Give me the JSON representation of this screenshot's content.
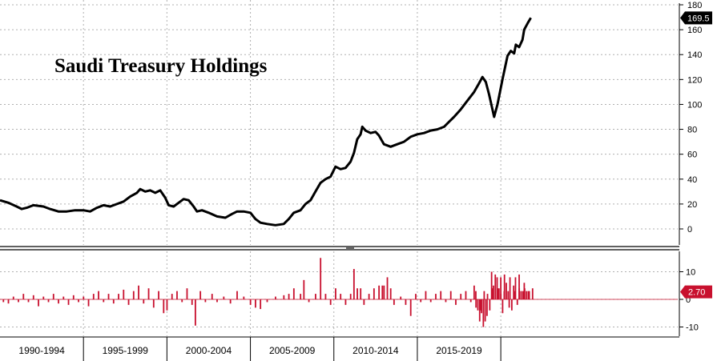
{
  "chart_data": [
    {
      "type": "line",
      "title": "Saudi Treasury Holdings",
      "ylim": [
        0,
        180
      ],
      "yticks": [
        "0",
        "20",
        "40",
        "60",
        "80",
        "100",
        "120",
        "140",
        "160",
        "180"
      ],
      "last_value_label": "169.5",
      "series": [
        {
          "values": [
            [
              1990.0,
              23
            ],
            [
              1990.5,
              21
            ],
            [
              1991.0,
              18
            ],
            [
              1991.3,
              16
            ],
            [
              1991.6,
              17
            ],
            [
              1992.0,
              19
            ],
            [
              1992.6,
              18
            ],
            [
              1993.0,
              16
            ],
            [
              1993.5,
              14
            ],
            [
              1994.0,
              14
            ],
            [
              1994.5,
              15
            ],
            [
              1995.0,
              15
            ],
            [
              1995.4,
              14
            ],
            [
              1995.8,
              17
            ],
            [
              1996.2,
              19
            ],
            [
              1996.6,
              18
            ],
            [
              1997.0,
              20
            ],
            [
              1997.4,
              22
            ],
            [
              1997.8,
              26
            ],
            [
              1998.2,
              29
            ],
            [
              1998.4,
              32
            ],
            [
              1998.7,
              30
            ],
            [
              1999.0,
              31
            ],
            [
              1999.3,
              29
            ],
            [
              1999.6,
              31
            ],
            [
              1999.9,
              25
            ],
            [
              2000.1,
              19
            ],
            [
              2000.4,
              18
            ],
            [
              2000.7,
              21
            ],
            [
              2001.0,
              24
            ],
            [
              2001.3,
              23
            ],
            [
              2001.6,
              18
            ],
            [
              2001.8,
              14
            ],
            [
              2002.1,
              15
            ],
            [
              2002.5,
              13
            ],
            [
              2003.0,
              10
            ],
            [
              2003.5,
              9
            ],
            [
              2003.9,
              12
            ],
            [
              2004.2,
              14
            ],
            [
              2004.6,
              14
            ],
            [
              2005.0,
              13
            ],
            [
              2005.3,
              8
            ],
            [
              2005.6,
              5
            ],
            [
              2006.0,
              4
            ],
            [
              2006.5,
              3
            ],
            [
              2007.0,
              4
            ],
            [
              2007.3,
              8
            ],
            [
              2007.6,
              13
            ],
            [
              2008.0,
              15
            ],
            [
              2008.3,
              20
            ],
            [
              2008.6,
              23
            ],
            [
              2008.9,
              30
            ],
            [
              2009.2,
              37
            ],
            [
              2009.5,
              40
            ],
            [
              2009.8,
              42
            ],
            [
              2010.1,
              50
            ],
            [
              2010.4,
              48
            ],
            [
              2010.7,
              49
            ],
            [
              2011.0,
              54
            ],
            [
              2011.2,
              61
            ],
            [
              2011.4,
              72
            ],
            [
              2011.6,
              76
            ],
            [
              2011.7,
              82
            ],
            [
              2011.9,
              79
            ],
            [
              2012.2,
              77
            ],
            [
              2012.5,
              78
            ],
            [
              2012.7,
              75
            ],
            [
              2013.0,
              68
            ],
            [
              2013.4,
              66
            ],
            [
              2013.8,
              68
            ],
            [
              2014.2,
              70
            ],
            [
              2014.6,
              74
            ],
            [
              2015.0,
              76
            ],
            [
              2015.4,
              77
            ],
            [
              2015.8,
              79
            ],
            [
              2016.2,
              80
            ],
            [
              2016.6,
              82
            ],
            [
              2016.9,
              86
            ],
            [
              2017.2,
              90
            ],
            [
              2017.6,
              96
            ],
            [
              2018.0,
              103
            ],
            [
              2018.4,
              110
            ],
            [
              2018.7,
              117
            ],
            [
              2018.9,
              122
            ],
            [
              2019.1,
              118
            ],
            [
              2019.3,
              108
            ],
            [
              2019.5,
              96
            ],
            [
              2019.6,
              90
            ],
            [
              2019.8,
              100
            ],
            [
              2020.1,
              120
            ],
            [
              2020.4,
              139
            ],
            [
              2020.6,
              143
            ],
            [
              2020.8,
              141
            ],
            [
              2020.9,
              148
            ],
            [
              2021.1,
              146
            ],
            [
              2021.3,
              152
            ],
            [
              2021.4,
              160
            ],
            [
              2021.6,
              165
            ],
            [
              2021.8,
              169.5
            ]
          ]
        }
      ]
    },
    {
      "type": "bar",
      "ylim": [
        -12,
        18
      ],
      "yticks": [
        "-10",
        "0",
        "10"
      ],
      "last_value_label": "2.70",
      "values": [
        [
          1990.2,
          -1
        ],
        [
          1990.5,
          -1.5
        ],
        [
          1990.8,
          1
        ],
        [
          1991.1,
          -1
        ],
        [
          1991.4,
          2
        ],
        [
          1991.7,
          -1
        ],
        [
          1992.0,
          1.5
        ],
        [
          1992.3,
          -2.5
        ],
        [
          1992.6,
          1
        ],
        [
          1992.9,
          -1
        ],
        [
          1993.2,
          2
        ],
        [
          1993.5,
          -1.5
        ],
        [
          1993.8,
          1
        ],
        [
          1994.1,
          -2
        ],
        [
          1994.4,
          1.5
        ],
        [
          1994.7,
          -1
        ],
        [
          1995.0,
          1
        ],
        [
          1995.3,
          -2.5
        ],
        [
          1995.6,
          2
        ],
        [
          1995.9,
          3
        ],
        [
          1996.2,
          -1
        ],
        [
          1996.5,
          2
        ],
        [
          1996.8,
          -1.5
        ],
        [
          1997.1,
          2
        ],
        [
          1997.4,
          3.5
        ],
        [
          1997.7,
          -2
        ],
        [
          1998.0,
          3
        ],
        [
          1998.3,
          5
        ],
        [
          1998.6,
          -1.5
        ],
        [
          1998.9,
          4
        ],
        [
          1999.2,
          -3
        ],
        [
          1999.5,
          3
        ],
        [
          1999.8,
          -5
        ],
        [
          2000.0,
          -4
        ],
        [
          2000.3,
          2
        ],
        [
          2000.6,
          3
        ],
        [
          2000.9,
          -1
        ],
        [
          2001.2,
          4
        ],
        [
          2001.5,
          -2
        ],
        [
          2001.7,
          -9.5
        ],
        [
          2002.0,
          3
        ],
        [
          2002.3,
          -1
        ],
        [
          2002.7,
          2
        ],
        [
          2003.0,
          -1
        ],
        [
          2003.4,
          1
        ],
        [
          2003.8,
          -1.5
        ],
        [
          2004.2,
          3
        ],
        [
          2004.6,
          1
        ],
        [
          2005.0,
          -2
        ],
        [
          2005.3,
          -3
        ],
        [
          2005.6,
          -3.5
        ],
        [
          2006.0,
          -1
        ],
        [
          2006.5,
          1
        ],
        [
          2007.0,
          1.5
        ],
        [
          2007.3,
          2
        ],
        [
          2007.6,
          4
        ],
        [
          2008.0,
          2
        ],
        [
          2008.2,
          7
        ],
        [
          2008.5,
          -1
        ],
        [
          2008.9,
          2
        ],
        [
          2009.2,
          15
        ],
        [
          2009.5,
          2
        ],
        [
          2009.8,
          -2
        ],
        [
          2010.1,
          4
        ],
        [
          2010.4,
          2
        ],
        [
          2010.7,
          -2
        ],
        [
          2011.0,
          2
        ],
        [
          2011.2,
          11
        ],
        [
          2011.4,
          4
        ],
        [
          2011.6,
          4
        ],
        [
          2011.8,
          -2
        ],
        [
          2012.1,
          2
        ],
        [
          2012.4,
          4
        ],
        [
          2012.7,
          5
        ],
        [
          2012.9,
          5
        ],
        [
          2013.0,
          5
        ],
        [
          2013.2,
          8
        ],
        [
          2013.4,
          4
        ],
        [
          2013.6,
          -2
        ],
        [
          2014.0,
          1
        ],
        [
          2014.3,
          -2
        ],
        [
          2014.6,
          -6
        ],
        [
          2014.9,
          2
        ],
        [
          2015.2,
          -1
        ],
        [
          2015.5,
          3
        ],
        [
          2015.8,
          -1
        ],
        [
          2016.1,
          2
        ],
        [
          2016.4,
          3
        ],
        [
          2016.7,
          -1
        ],
        [
          2017.0,
          3
        ],
        [
          2017.3,
          -2
        ],
        [
          2017.6,
          2
        ],
        [
          2017.9,
          3
        ],
        [
          2018.2,
          -1
        ],
        [
          2018.5,
          3
        ],
        [
          2018.8,
          -4
        ],
        [
          2019.0,
          3
        ],
        [
          2019.2,
          2
        ],
        [
          2019.5,
          4
        ],
        [
          2019.8,
          4
        ],
        [
          2020.0,
          2
        ],
        [
          2020.2,
          3
        ],
        [
          2020.5,
          -3
        ],
        [
          2020.8,
          3
        ],
        [
          2021.1,
          4
        ],
        [
          2021.4,
          6
        ],
        [
          2021.7,
          3
        ],
        [
          2021.9,
          4
        ],
        [
          2024.2,
          5
        ],
        [
          2024.4,
          -3
        ],
        [
          2024.6,
          -4
        ],
        [
          2024.8,
          -8
        ],
        [
          2025.0,
          -5
        ],
        [
          2025.2,
          -10
        ],
        [
          2025.4,
          -8
        ],
        [
          2025.6,
          -6
        ],
        [
          2025.9,
          -4
        ],
        [
          2026.1,
          10
        ],
        [
          2026.3,
          5
        ],
        [
          2026.5,
          9
        ],
        [
          2026.7,
          8
        ],
        [
          2026.9,
          4
        ],
        [
          2027.1,
          8
        ],
        [
          2027.3,
          -5
        ],
        [
          2027.5,
          9
        ],
        [
          2027.7,
          6
        ],
        [
          2027.9,
          3
        ],
        [
          2028.1,
          8
        ],
        [
          2028.3,
          -4
        ],
        [
          2028.5,
          5
        ],
        [
          2028.7,
          8
        ],
        [
          2028.9,
          -2
        ],
        [
          2029.1,
          9
        ],
        [
          2029.3,
          3
        ],
        [
          2029.5,
          3
        ],
        [
          2029.7,
          4
        ],
        [
          2029.9,
          3
        ],
        [
          2030.1,
          3
        ]
      ]
    }
  ],
  "x_axis": {
    "periods": [
      "1990-1994",
      "1995-1999",
      "2000-2004",
      "2005-2009",
      "2010-2014",
      "2015-2019"
    ]
  },
  "colors": {
    "line": "#000000",
    "bars": "#c8102e",
    "badge_line": "#000000",
    "badge_bars": "#c8102e",
    "grid": "#b0b0b0"
  }
}
